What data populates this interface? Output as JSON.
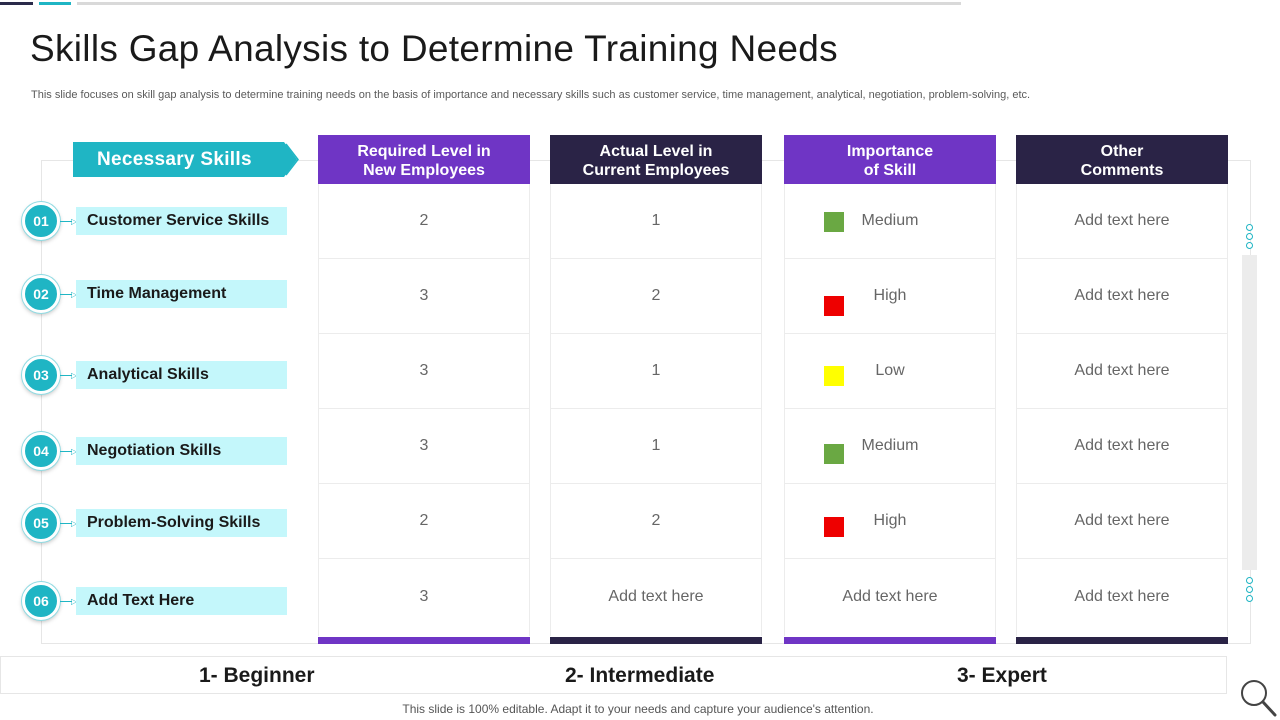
{
  "title": "Skills Gap Analysis to Determine Training Needs",
  "subtitle": "This slide focuses on skill gap analysis to determine training needs on the basis of importance and necessary skills such as customer service, time management, analytical, negotiation, problem-solving, etc.",
  "necessary_skills": {
    "header": "Necessary Skills",
    "items": [
      {
        "num": "01",
        "label": "Customer Service Skills"
      },
      {
        "num": "02",
        "label": "Time Management"
      },
      {
        "num": "03",
        "label": "Analytical Skills"
      },
      {
        "num": "04",
        "label": "Negotiation Skills"
      },
      {
        "num": "05",
        "label": "Problem-Solving Skills"
      },
      {
        "num": "06",
        "label": "Add Text Here"
      }
    ]
  },
  "columns": [
    {
      "header_line1": "Required Level in",
      "header_line2": "New Employees",
      "color": "#6f35c5",
      "values": [
        "2",
        "3",
        "3",
        "3",
        "2",
        "3"
      ]
    },
    {
      "header_line1": "Actual Level in",
      "header_line2": "Current Employees",
      "color": "#2a2346",
      "values": [
        "1",
        "2",
        "1",
        "1",
        "2",
        "Add text here"
      ]
    },
    {
      "header_line1": "Importance",
      "header_line2": "of Skill",
      "color": "#6f35c5",
      "values": [
        "Medium",
        "High",
        "Low",
        "Medium",
        "High",
        "Add text here"
      ]
    },
    {
      "header_line1": "Other",
      "header_line2": "Comments",
      "color": "#2a2346",
      "values": [
        "Add text here",
        "Add text here",
        "Add text here",
        "Add text here",
        "Add text here",
        "Add text here"
      ]
    }
  ],
  "importance_colors": {
    "Medium": "#6aa843",
    "High": "#ee0000",
    "Low": "#ffff00"
  },
  "legend": {
    "beginner": "1- Beginner",
    "intermediate": "2- Intermediate",
    "expert": "3- Expert"
  },
  "footer_note": "This slide is 100% editable. Adapt it to your needs and capture your audience's attention.",
  "icons": {
    "search": "search-icon",
    "arrow": "arrow-right-icon"
  },
  "colors": {
    "teal": "#1fb5c4",
    "light_teal": "#c4f7fb",
    "purple": "#6f35c5",
    "navy": "#2a2346"
  }
}
